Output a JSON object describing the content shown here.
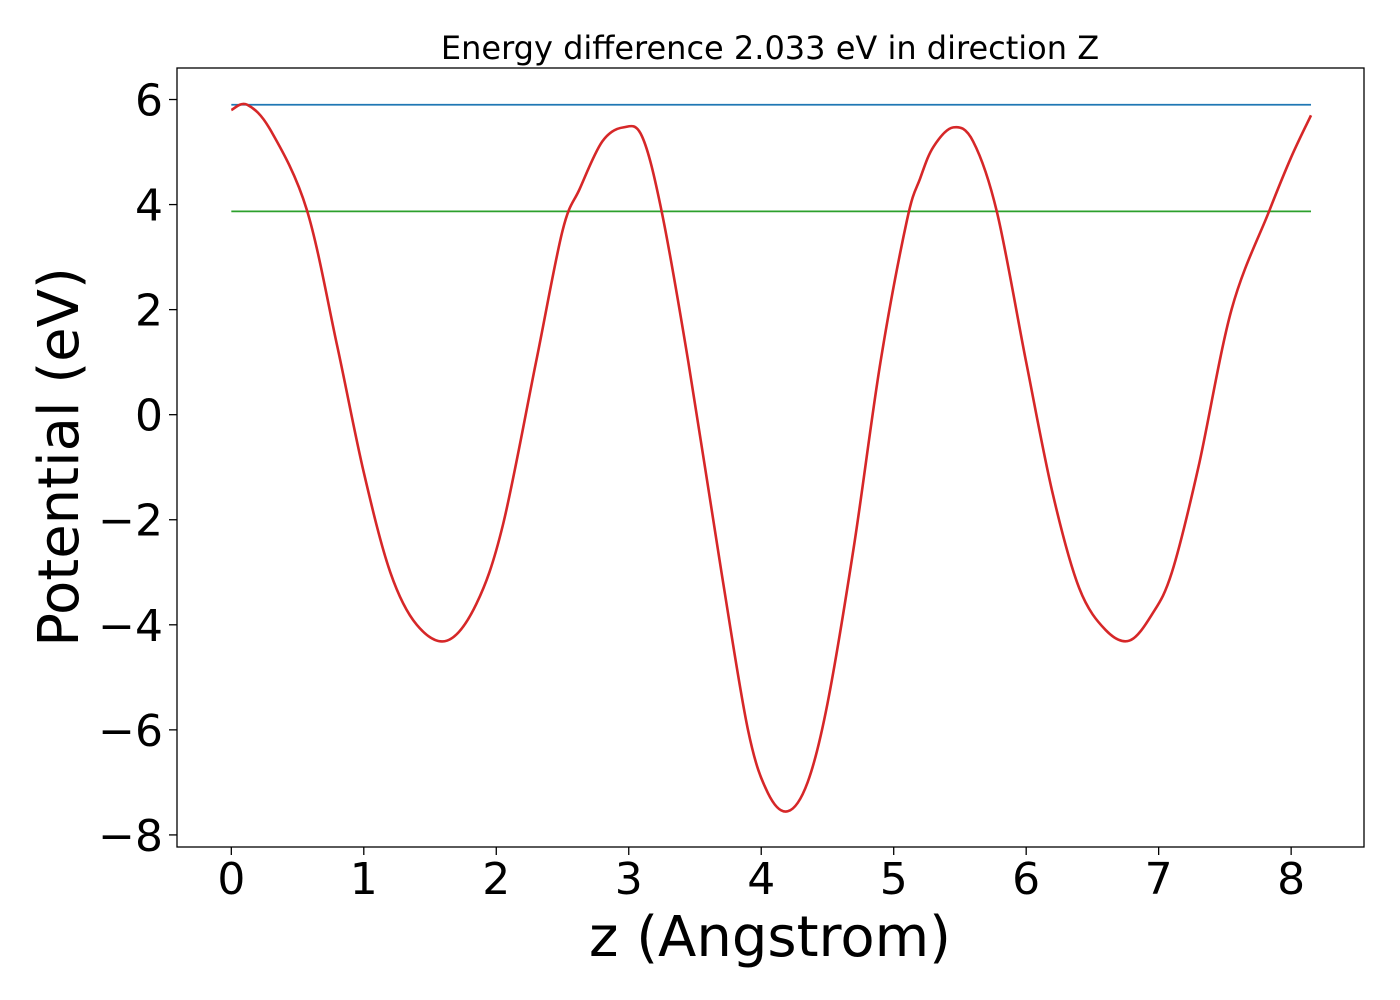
{
  "chart_data": {
    "type": "line",
    "title": "Energy difference 2.033 eV in direction Z",
    "xlabel": "z (Angstrom)",
    "ylabel": "Potential (eV)",
    "xlim": [
      -0.41,
      8.55
    ],
    "ylim": [
      -8.23,
      6.6
    ],
    "xticks": [
      0,
      1,
      2,
      3,
      4,
      5,
      6,
      7,
      8
    ],
    "yticks": [
      -8,
      -6,
      -4,
      -2,
      0,
      2,
      4,
      6
    ],
    "xtick_labels": [
      "0",
      "1",
      "2",
      "3",
      "4",
      "5",
      "6",
      "7",
      "8"
    ],
    "ytick_labels": [
      "−8",
      "−6",
      "−4",
      "−2",
      "0",
      "2",
      "4",
      "6"
    ],
    "grid": false,
    "legend": "none",
    "series": [
      {
        "color": "#1f77b4",
        "x": [
          0,
          8.15
        ],
        "y": [
          5.9,
          5.9
        ]
      },
      {
        "color": "#2ca02c",
        "x": [
          0,
          8.15
        ],
        "y": [
          3.87,
          3.87
        ]
      },
      {
        "color": "#d62728",
        "x": [
          0,
          0.12,
          0.3,
          0.57,
          0.8,
          1.0,
          1.2,
          1.4,
          1.63,
          1.85,
          2.05,
          2.3,
          2.5,
          2.63,
          2.8,
          2.96,
          3.1,
          3.25,
          3.45,
          3.7,
          3.9,
          4.05,
          4.2,
          4.35,
          4.5,
          4.7,
          4.9,
          5.1,
          5.2,
          5.3,
          5.45,
          5.6,
          5.78,
          6.0,
          6.2,
          6.4,
          6.6,
          6.78,
          6.95,
          7.1,
          7.3,
          7.55,
          7.83,
          8.0,
          8.15
        ],
        "y": [
          5.8,
          5.9,
          5.4,
          3.9,
          1.3,
          -1.1,
          -3.0,
          -4.0,
          -4.3,
          -3.6,
          -2.1,
          1.0,
          3.5,
          4.3,
          5.2,
          5.47,
          5.3,
          3.85,
          1.0,
          -3.0,
          -6.0,
          -7.2,
          -7.55,
          -7.0,
          -5.5,
          -2.5,
          1.0,
          3.7,
          4.5,
          5.1,
          5.47,
          5.2,
          3.85,
          1.0,
          -1.5,
          -3.3,
          -4.1,
          -4.3,
          -3.8,
          -3.0,
          -1.0,
          2.0,
          3.85,
          4.9,
          5.7
        ]
      }
    ]
  }
}
